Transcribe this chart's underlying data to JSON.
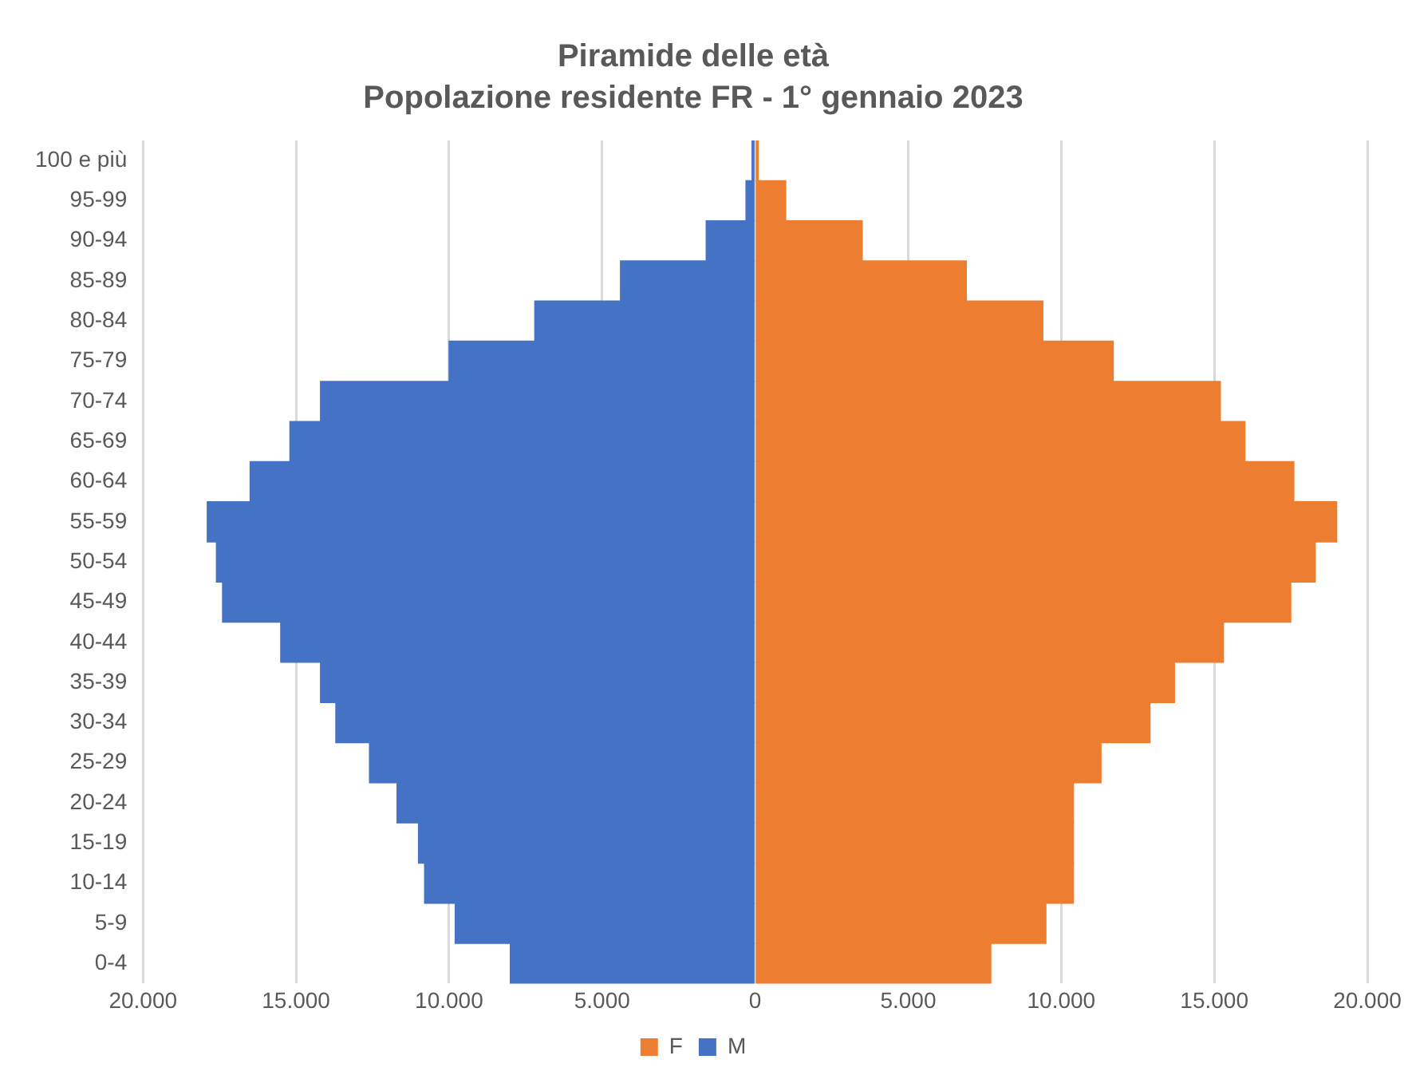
{
  "chart_data": {
    "type": "bar",
    "orientation": "horizontal",
    "stacked": true,
    "title": "Piramide delle età",
    "subtitle": "Popolazione residente FR - 1° gennaio 2023",
    "categories": [
      "100 e più",
      "95-99",
      "90-94",
      "85-89",
      "80-84",
      "75-79",
      "70-74",
      "65-69",
      "60-64",
      "55-59",
      "50-54",
      "45-49",
      "40-44",
      "35-39",
      "30-34",
      "25-29",
      "20-24",
      "15-19",
      "10-14",
      "5-9",
      "0-4"
    ],
    "series": [
      {
        "name": "F",
        "color": "#ed7d31",
        "values": [
          100,
          1000,
          3500,
          6900,
          9400,
          11700,
          15200,
          16000,
          17600,
          19000,
          18300,
          17500,
          15300,
          13700,
          12900,
          11300,
          10400,
          10400,
          10400,
          9500,
          7700
        ]
      },
      {
        "name": "M",
        "color": "#4472c4",
        "values": [
          -100,
          -300,
          -1600,
          -4400,
          -7200,
          -10000,
          -14200,
          -15200,
          -16500,
          -17900,
          -17600,
          -17400,
          -15500,
          -14200,
          -13700,
          -12600,
          -11700,
          -11000,
          -10800,
          -9800,
          -8000
        ]
      }
    ],
    "xlim": [
      -20000,
      20000
    ],
    "xticks": [
      {
        "value": -20000,
        "label": "20.000"
      },
      {
        "value": -15000,
        "label": "15.000"
      },
      {
        "value": -10000,
        "label": "10.000"
      },
      {
        "value": -5000,
        "label": "5.000"
      },
      0,
      {
        "value": 5000,
        "label": "5.000"
      },
      {
        "value": 10000,
        "label": "10.000"
      },
      {
        "value": 15000,
        "label": "15.000"
      },
      {
        "value": 20000,
        "label": "20.000"
      }
    ],
    "grid": "x",
    "legend": "bottom"
  }
}
